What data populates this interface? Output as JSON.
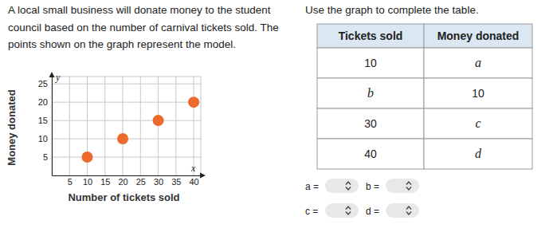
{
  "intro": [
    "A local small business will donate money to the student",
    "council based on the number of carnival tickets sold. The",
    "points shown on the graph represent the model."
  ],
  "instruction": "Use the graph to complete the table.",
  "chart_data": {
    "type": "scatter",
    "x_label": "Number of tickets sold",
    "y_label": "Money donated",
    "annotations": [
      "x",
      "y"
    ],
    "x": [
      10,
      20,
      30,
      40
    ],
    "values": [
      5,
      10,
      15,
      20
    ],
    "color": "#ec6a2c",
    "marker": "circle",
    "xlim": [
      0,
      42
    ],
    "xticks": [
      5,
      10,
      15,
      20,
      25,
      30,
      35,
      40
    ],
    "ylim": [
      0,
      27
    ],
    "yticks": [
      5,
      10,
      15,
      20,
      25
    ],
    "grid": true
  },
  "table": {
    "header": [
      "Tickets sold",
      "Money donated"
    ],
    "rows": [
      [
        "10",
        "a"
      ],
      [
        "b",
        "10"
      ],
      [
        "30",
        "c"
      ],
      [
        "40",
        "d"
      ]
    ]
  },
  "answers": [
    "a =",
    "b =",
    "c =",
    "d ="
  ]
}
